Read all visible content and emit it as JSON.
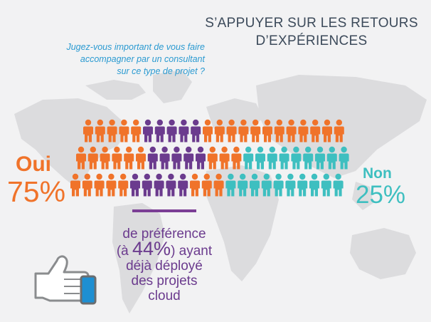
{
  "title": {
    "line1": "S’APPUYER SUR LES RETOURS",
    "line2": "D’EXPÉRIENCES"
  },
  "question": {
    "line1": "Jugez-vous important de vous faire",
    "line2": "accompagner par un consultant",
    "line3": "sur ce type de projet ?"
  },
  "oui": {
    "label": "Oui",
    "percent": "75%"
  },
  "non": {
    "label": "Non",
    "percent": "25%"
  },
  "preference": {
    "line1": "de préférence",
    "line2_open": "(à ",
    "line2_pct": "44%",
    "line2_close": ") ayant",
    "line3": "déjà déployé",
    "line4": "des projets",
    "line5": "cloud"
  },
  "colors": {
    "oui": "#f0732a",
    "preference": "#6b3b8e",
    "non": "#3ebfc0",
    "question": "#2a9ad1",
    "title": "#3c4a5a",
    "map": "#dcdcde"
  },
  "icons": [
    "person-icon",
    "thumbs-up-icon",
    "world-map"
  ]
}
